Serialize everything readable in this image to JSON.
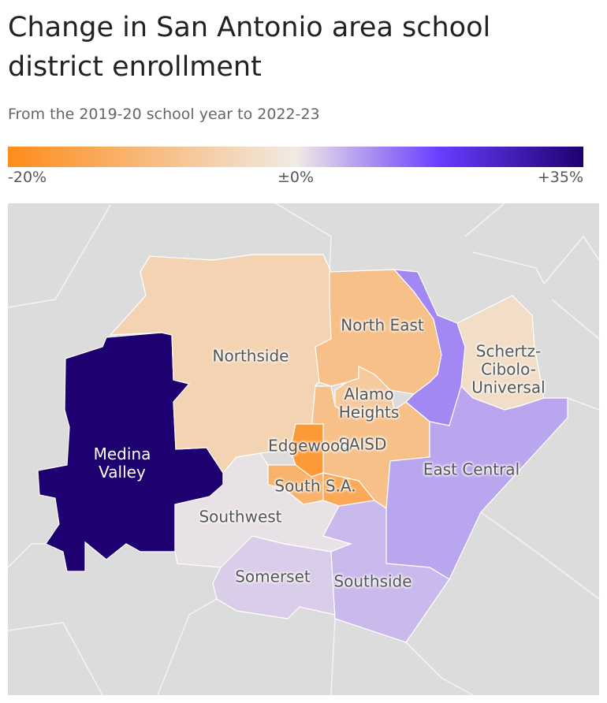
{
  "header": {
    "title": "Change in San Antonio area school district enrollment",
    "subtitle": "From the 2019-20 school year to 2022-23"
  },
  "legend": {
    "range": [
      -20,
      35
    ],
    "ticks": [
      {
        "value": -20,
        "label": "-20%"
      },
      {
        "value": 0,
        "label": "±0%"
      },
      {
        "value": 35,
        "label": "+35%"
      }
    ],
    "colors": [
      "#ff8c1a",
      "#f0ebe4",
      "#6a3cff",
      "#1f0070"
    ]
  },
  "districts": [
    {
      "name": "Medina Valley",
      "value": 35
    },
    {
      "name": "Northside",
      "value": -5
    },
    {
      "name": "North East",
      "value": -9
    },
    {
      "name": null,
      "value": 10
    },
    {
      "name": "Schertz-Cibolo-Universal",
      "value": -3
    },
    {
      "name": "Alamo Heights",
      "value": -7
    },
    {
      "name": "SAISD",
      "value": -9
    },
    {
      "name": "Edgewood",
      "value": -17
    },
    {
      "name": "South S.A.",
      "value": -12
    },
    {
      "name": null,
      "value": -14
    },
    {
      "name": "East Central",
      "value": 7
    },
    {
      "name": "Southwest",
      "value": 1
    },
    {
      "name": "Somerset",
      "value": 3
    },
    {
      "name": "Southside",
      "value": 5
    }
  ]
}
